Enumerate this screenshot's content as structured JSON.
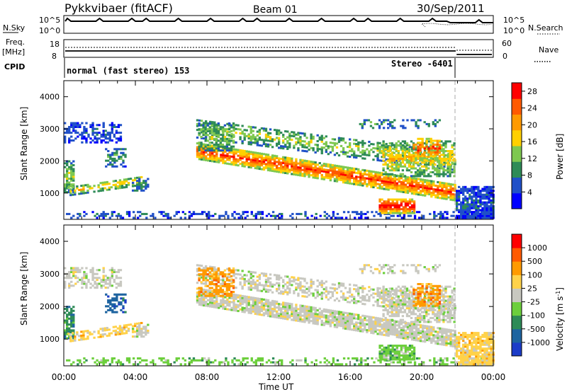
{
  "header": {
    "station": "Pykkvibaer (fitACF)",
    "beam": "Beam 01",
    "date": "30/Sep/2011"
  },
  "top_panels": {
    "nsky_label": "N.Sky",
    "nsky_ticks": [
      "10^5",
      "10^0"
    ],
    "nsearch_label": "N.Search",
    "nsearch_ticks": [
      "10^5",
      "10^0"
    ],
    "freq_label_line1": "Freq.",
    "freq_label_line2": "[MHz]",
    "freq_ticks": [
      "18",
      "8"
    ],
    "nave_label": "Nave",
    "nave_ticks": [
      "60",
      "0"
    ],
    "cpid_label": "CPID",
    "cpid_modes": [
      "normal (fast stereo) 153",
      "Stereo -6401"
    ]
  },
  "colors": {
    "power": [
      "#0000ff",
      "#2050c8",
      "#2e8b57",
      "#7ec850",
      "#ffd000",
      "#ff9a00",
      "#ff5a00",
      "#ff0000"
    ],
    "velocity": [
      "#1c3cc8",
      "#1e64a0",
      "#2e8b57",
      "#6ccf3c",
      "#c8c8c0",
      "#ffd24a",
      "#ff9a00",
      "#ff5a00",
      "#ff0000"
    ]
  },
  "chart_data": [
    {
      "type": "heatmap",
      "title": "Power",
      "xlabel": "Time UT",
      "ylabel": "Slant Range [km]",
      "xlim": [
        "00:00",
        "24:00"
      ],
      "ylim": [
        180,
        4500
      ],
      "x_ticks": [
        "00:00",
        "04:00",
        "08:00",
        "12:00",
        "16:00",
        "20:00",
        "00:00"
      ],
      "y_ticks": [
        1000,
        2000,
        3000,
        4000
      ],
      "colorbar_label": "Power [dB]",
      "colorbar_ticks": [
        "4",
        "8",
        "12",
        "16",
        "20",
        "24",
        "28"
      ],
      "colorbar_range": [
        0,
        30
      ]
    },
    {
      "type": "heatmap",
      "title": "Velocity",
      "xlabel": "Time UT",
      "ylabel": "Slant Range [km]",
      "xlim": [
        "00:00",
        "24:00"
      ],
      "ylim": [
        180,
        4500
      ],
      "x_ticks": [
        "00:00",
        "04:00",
        "08:00",
        "12:00",
        "16:00",
        "20:00",
        "00:00"
      ],
      "y_ticks": [
        1000,
        2000,
        3000,
        4000
      ],
      "colorbar_label": "Velocity [m s",
      "colorbar_label_sup": "-1",
      "colorbar_label_end": "]",
      "colorbar_ticks": [
        "1000",
        "500",
        "100",
        "25",
        "-25",
        "-100",
        "-500",
        "-1000"
      ]
    }
  ]
}
